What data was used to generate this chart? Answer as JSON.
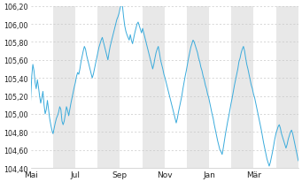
{
  "y_min": 104.4,
  "y_max": 106.2,
  "y_ticks": [
    104.4,
    104.6,
    104.8,
    105.0,
    105.2,
    105.4,
    105.6,
    105.8,
    106.0,
    106.2
  ],
  "y_tick_labels": [
    "104,40",
    "104,60",
    "104,80",
    "105,00",
    "105,20",
    "105,40",
    "105,60",
    "105,80",
    "106,00",
    "106,20"
  ],
  "x_tick_labels": [
    "Mai",
    "Jul",
    "Sep",
    "Nov",
    "Mär"
  ],
  "x_tick_labels_full": [
    "Mai",
    "Jul",
    "Sep",
    "Nov",
    "Jan",
    "Mär"
  ],
  "line_color": "#3aabdc",
  "background_color": "#ffffff",
  "band_color": "#e8e8e8",
  "grid_color": "#c8c8c8",
  "font_color": "#222222",
  "price_data": [
    105.15,
    105.42,
    105.55,
    105.48,
    105.35,
    105.28,
    105.38,
    105.3,
    105.2,
    105.12,
    105.18,
    105.25,
    105.1,
    105.0,
    105.05,
    105.15,
    105.05,
    104.95,
    104.88,
    104.82,
    104.78,
    104.84,
    104.9,
    104.95,
    104.98,
    105.02,
    105.08,
    105.05,
    104.92,
    104.88,
    104.92,
    105.0,
    105.08,
    105.04,
    104.98,
    105.05,
    105.12,
    105.18,
    105.24,
    105.3,
    105.35,
    105.42,
    105.46,
    105.44,
    105.5,
    105.58,
    105.64,
    105.7,
    105.75,
    105.72,
    105.65,
    105.6,
    105.55,
    105.5,
    105.45,
    105.4,
    105.44,
    105.5,
    105.56,
    105.62,
    105.68,
    105.74,
    105.78,
    105.82,
    105.85,
    105.8,
    105.75,
    105.7,
    105.65,
    105.6,
    105.68,
    105.75,
    105.8,
    105.85,
    105.9,
    105.95,
    106.0,
    106.05,
    106.08,
    106.12,
    106.18,
    106.22,
    106.2,
    106.08,
    105.98,
    105.92,
    105.88,
    105.85,
    105.82,
    105.88,
    105.82,
    105.78,
    105.84,
    105.9,
    105.95,
    106.0,
    106.02,
    105.98,
    105.94,
    105.9,
    105.95,
    105.9,
    105.85,
    105.8,
    105.75,
    105.7,
    105.65,
    105.6,
    105.55,
    105.5,
    105.55,
    105.62,
    105.68,
    105.72,
    105.75,
    105.68,
    105.6,
    105.55,
    105.5,
    105.44,
    105.4,
    105.35,
    105.3,
    105.25,
    105.2,
    105.15,
    105.1,
    105.05,
    105.0,
    104.95,
    104.9,
    104.95,
    105.02,
    105.08,
    105.14,
    105.2,
    105.28,
    105.35,
    105.42,
    105.48,
    105.55,
    105.62,
    105.68,
    105.74,
    105.78,
    105.82,
    105.8,
    105.76,
    105.72,
    105.68,
    105.62,
    105.58,
    105.52,
    105.48,
    105.42,
    105.38,
    105.32,
    105.28,
    105.22,
    105.18,
    105.12,
    105.06,
    105.0,
    104.95,
    104.88,
    104.82,
    104.76,
    104.7,
    104.65,
    104.6,
    104.58,
    104.55,
    104.62,
    104.7,
    104.78,
    104.85,
    104.92,
    104.98,
    105.05,
    105.12,
    105.18,
    105.25,
    105.32,
    105.38,
    105.44,
    105.5,
    105.58,
    105.62,
    105.68,
    105.72,
    105.75,
    105.7,
    105.62,
    105.55,
    105.5,
    105.44,
    105.38,
    105.32,
    105.28,
    105.22,
    105.18,
    105.12,
    105.06,
    105.0,
    104.94,
    104.88,
    104.82,
    104.75,
    104.68,
    104.62,
    104.56,
    104.5,
    104.46,
    104.42,
    104.46,
    104.52,
    104.58,
    104.65,
    104.72,
    104.78,
    104.82,
    104.86,
    104.88,
    104.84,
    104.78,
    104.74,
    104.7,
    104.66,
    104.62,
    104.66,
    104.72,
    104.76,
    104.8,
    104.82,
    104.78,
    104.72,
    104.66,
    104.6,
    104.54,
    104.48
  ]
}
